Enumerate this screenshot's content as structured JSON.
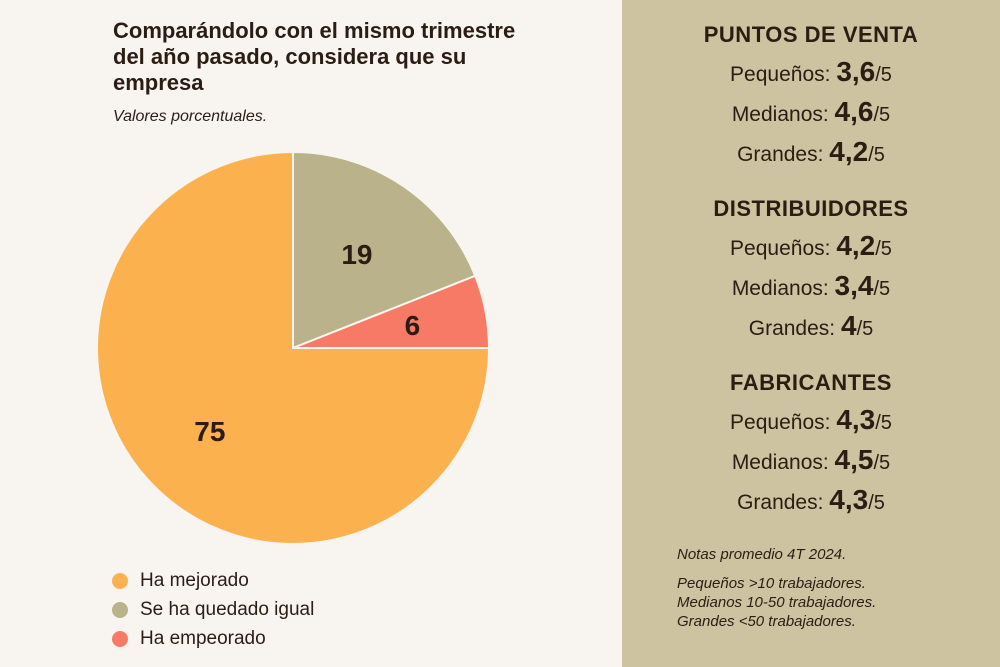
{
  "chart_data": {
    "type": "pie",
    "title": "Comparándolo con el mismo trimestre del año pasado, considera que su empresa",
    "subtitle": "Valores porcentuales.",
    "slices": [
      {
        "name": "Ha mejorado",
        "value": 75,
        "color": "#fcb14f"
      },
      {
        "name": "Se ha quedado igual",
        "value": 19,
        "color": "#b9b28a"
      },
      {
        "name": "Ha empeorado",
        "value": 6,
        "color": "#f77a66"
      }
    ],
    "legend_position": "bottom-left"
  },
  "sidebar": {
    "groups": [
      {
        "title": "PUNTOS DE VENTA",
        "rows": [
          {
            "label": "Pequeños:",
            "value": "3,6",
            "denom": "/5"
          },
          {
            "label": "Medianos:",
            "value": "4,6",
            "denom": "/5"
          },
          {
            "label": "Grandes:",
            "value": "4,2",
            "denom": "/5"
          }
        ]
      },
      {
        "title": "DISTRIBUIDORES",
        "rows": [
          {
            "label": "Pequeños:",
            "value": "4,2",
            "denom": "/5"
          },
          {
            "label": "Medianos:",
            "value": "3,4",
            "denom": "/5"
          },
          {
            "label": "Grandes:",
            "value": "4",
            "denom": "/5"
          }
        ]
      },
      {
        "title": "FABRICANTES",
        "rows": [
          {
            "label": "Pequeños:",
            "value": "4,3",
            "denom": "/5"
          },
          {
            "label": "Medianos:",
            "value": "4,5",
            "denom": "/5"
          },
          {
            "label": "Grandes:",
            "value": "4,3",
            "denom": "/5"
          }
        ]
      }
    ],
    "notes": [
      "Notas promedio 4T 2024.",
      "Pequeños >10 trabajadores.",
      "Medianos 10-50 trabajadores.",
      "Grandes <50 trabajadores."
    ]
  },
  "colors": {
    "background": "#f8f5f0",
    "panel": "#cdc3a0",
    "text": "#2b1d14"
  }
}
